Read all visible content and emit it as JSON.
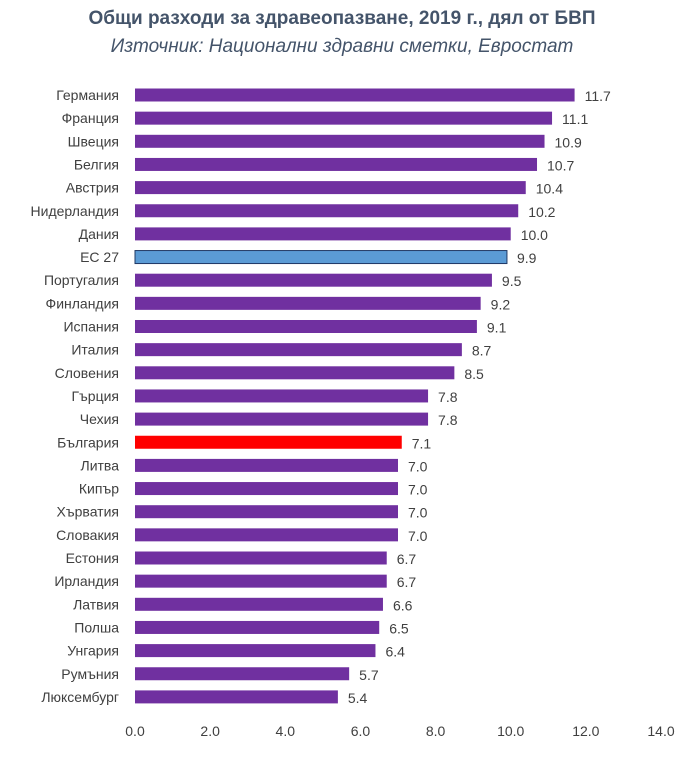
{
  "chart_data": {
    "type": "bar",
    "orientation": "horizontal",
    "title": "Общи разходи за здравеопазване, 2019 г., дял от БВП",
    "subtitle": "Източник: Национални здравни сметки, Евростат",
    "categories": [
      "Германия",
      "Франция",
      "Швеция",
      "Белгия",
      "Австрия",
      "Нидерландия",
      "Дания",
      "ЕС 27",
      "Португалия",
      "Финландия",
      "Испания",
      "Италия",
      "Словения",
      "Гърция",
      "Чехия",
      "България",
      "Литва",
      "Кипър",
      "Хърватия",
      "Словакия",
      "Естония",
      "Ирландия",
      "Латвия",
      "Полша",
      "Унгария",
      "Румъния",
      "Люксембург"
    ],
    "values": [
      11.7,
      11.1,
      10.9,
      10.7,
      10.4,
      10.2,
      10.0,
      9.9,
      9.5,
      9.2,
      9.1,
      8.7,
      8.5,
      7.8,
      7.8,
      7.1,
      7.0,
      7.0,
      7.0,
      7.0,
      6.7,
      6.7,
      6.6,
      6.5,
      6.4,
      5.7,
      5.4
    ],
    "value_labels": [
      "11.7",
      "11.1",
      "10.9",
      "10.7",
      "10.4",
      "10.2",
      "10.0",
      "9.9",
      "9.5",
      "9.2",
      "9.1",
      "8.7",
      "8.5",
      "7.8",
      "7.8",
      "7.1",
      "7.0",
      "7.0",
      "7.0",
      "7.0",
      "6.7",
      "6.7",
      "6.6",
      "6.5",
      "6.4",
      "5.7",
      "5.4"
    ],
    "xlim": [
      0,
      14
    ],
    "xticks": [
      "0.0",
      "2.0",
      "4.0",
      "6.0",
      "8.0",
      "10.0",
      "12.0",
      "14.0"
    ],
    "grid": false,
    "colors": {
      "default": "#7030a0",
      "highlight_eu": "#5b9bd5",
      "highlight_bg": "#ff0000"
    },
    "highlights": {
      "ЕС 27": "highlight_eu",
      "България": "highlight_bg"
    }
  }
}
